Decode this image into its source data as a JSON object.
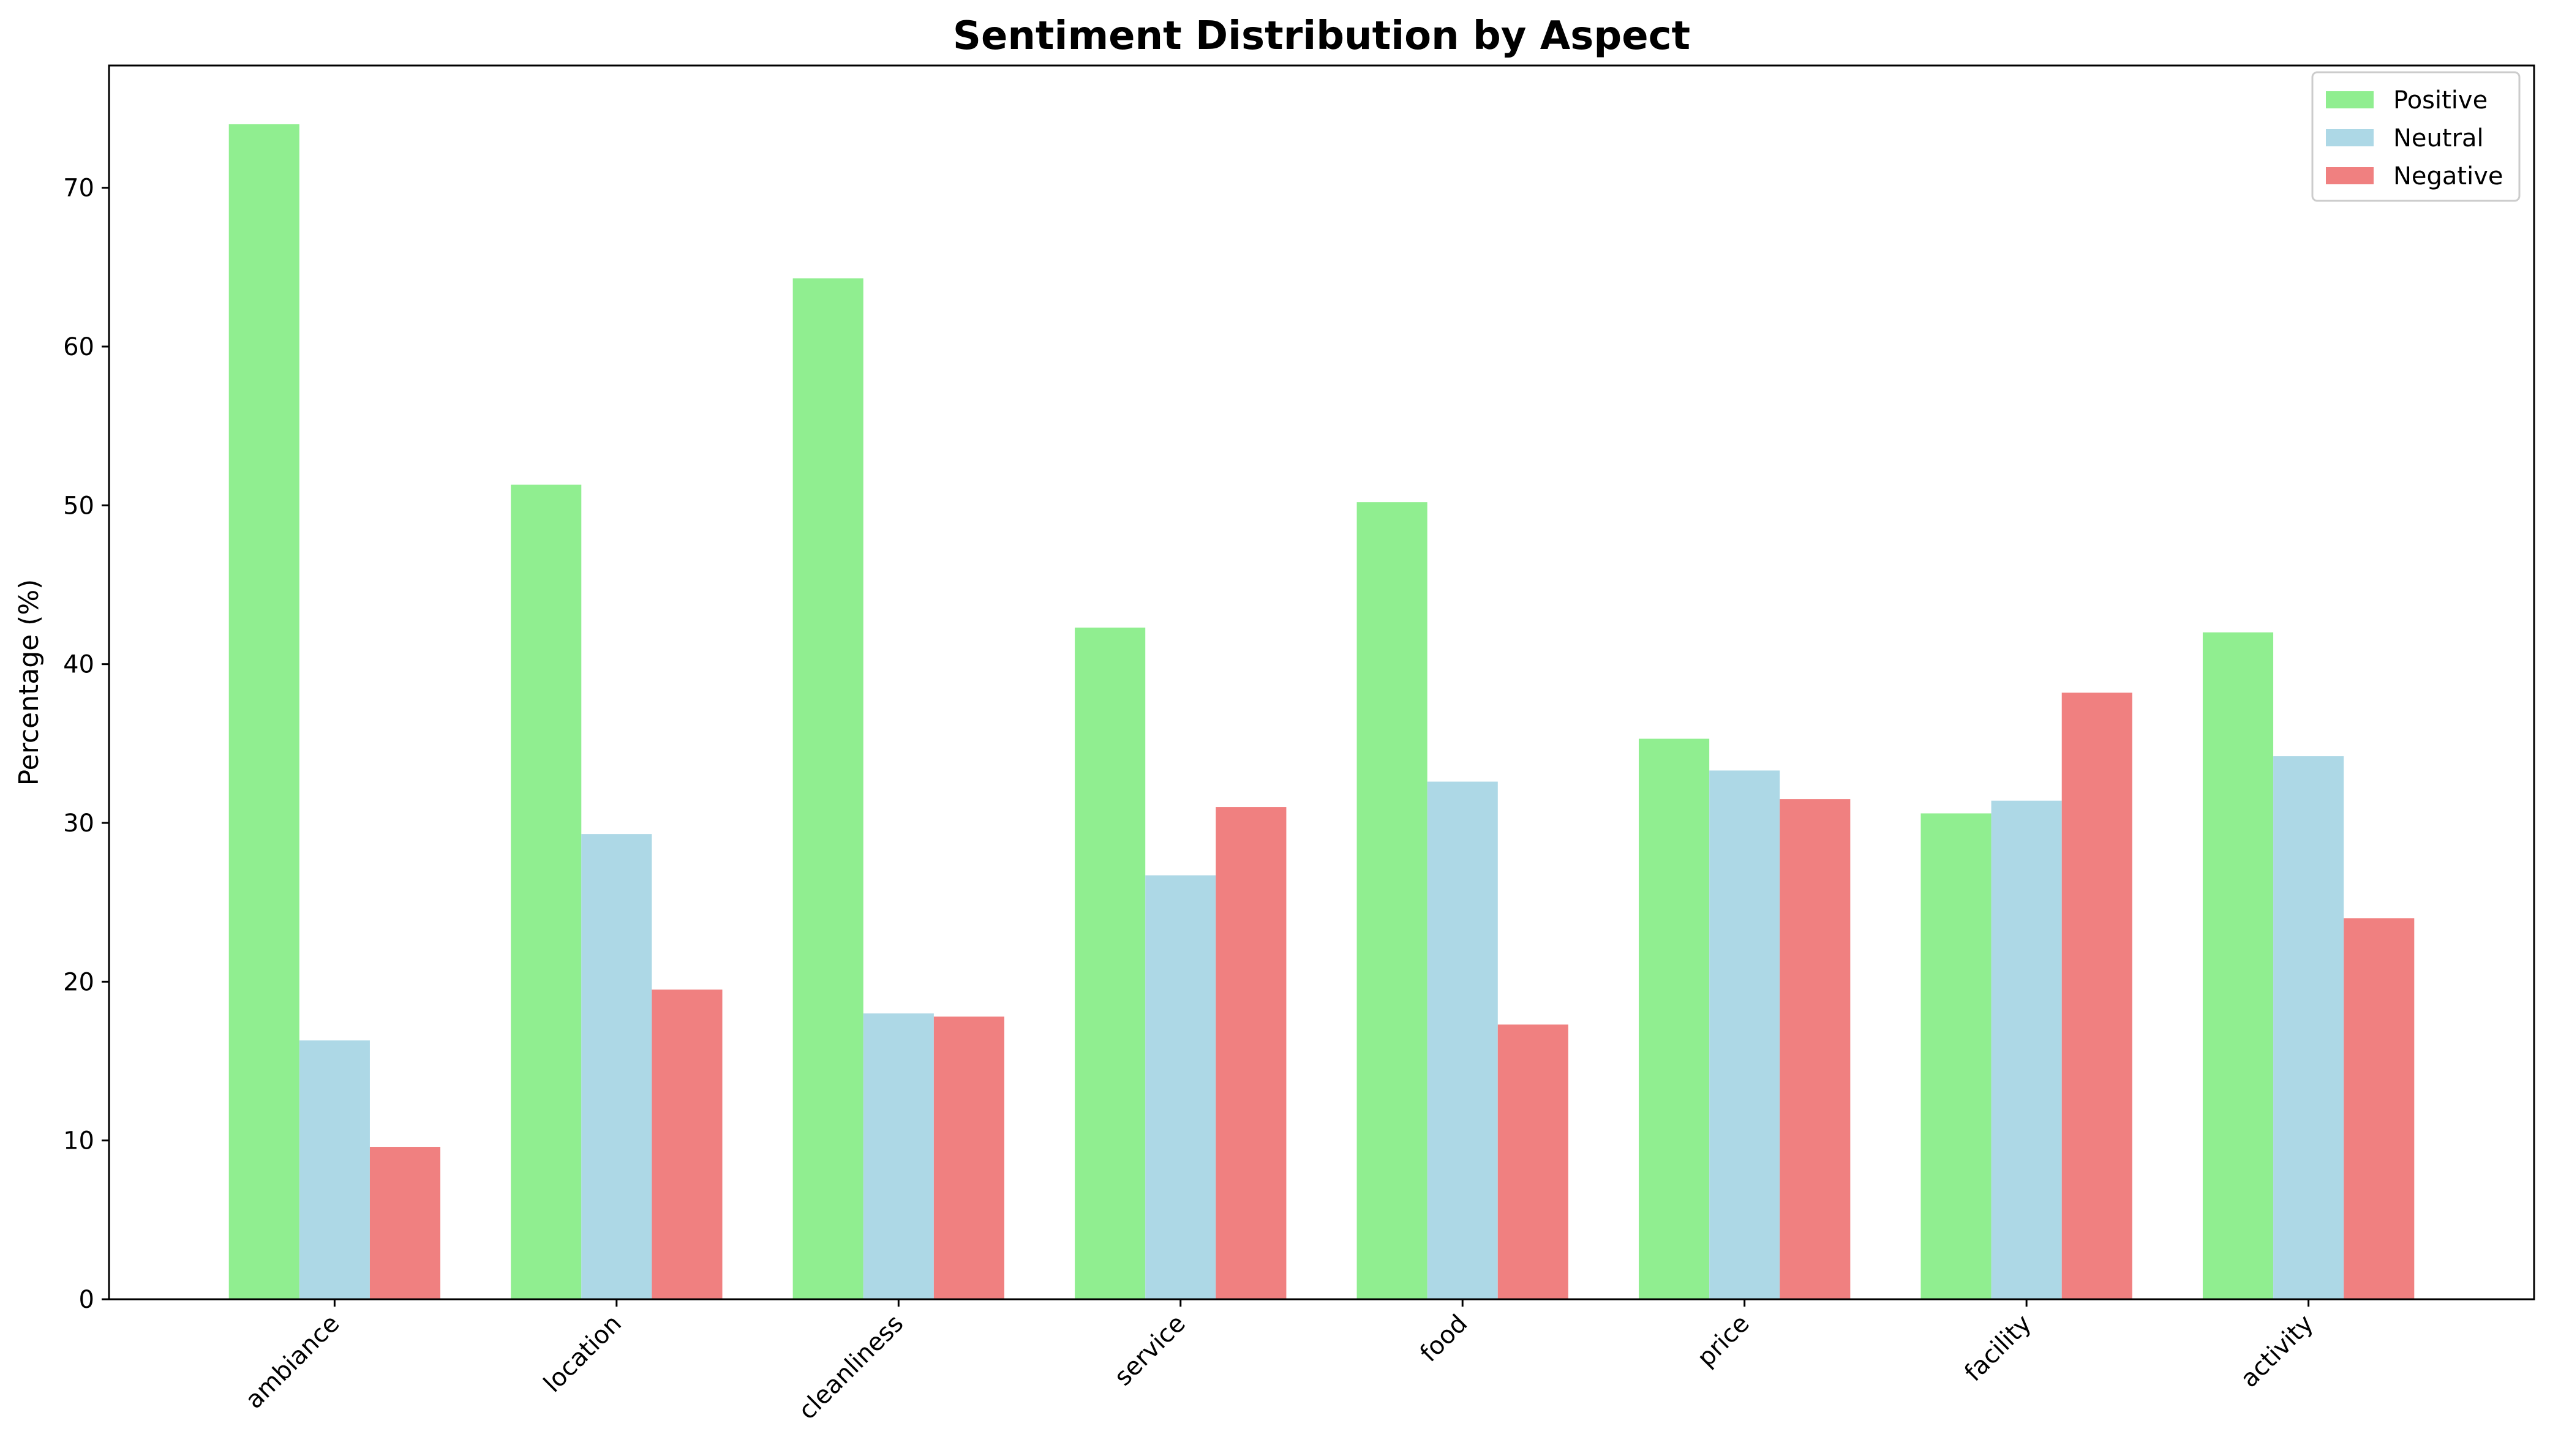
{
  "chart_data": {
    "type": "bar",
    "title": "Sentiment Distribution by Aspect",
    "xlabel": "",
    "ylabel": "Percentage (%)",
    "categories": [
      "ambiance",
      "location",
      "cleanliness",
      "service",
      "food",
      "price",
      "facility",
      "activity"
    ],
    "series": [
      {
        "name": "Positive",
        "color": "#90ee90",
        "values": [
          74.0,
          51.3,
          64.3,
          42.3,
          50.2,
          35.3,
          30.6,
          42.0
        ]
      },
      {
        "name": "Neutral",
        "color": "#add8e6",
        "values": [
          16.3,
          29.3,
          18.0,
          26.7,
          32.6,
          33.3,
          31.4,
          34.2
        ]
      },
      {
        "name": "Negative",
        "color": "#f08080",
        "values": [
          9.6,
          19.5,
          17.8,
          31.0,
          17.3,
          31.5,
          38.2,
          24.0
        ]
      }
    ],
    "yticks": [
      0,
      10,
      20,
      30,
      40,
      50,
      60,
      70
    ],
    "ylim": [
      0,
      77.7
    ],
    "grid": false,
    "legend_position": "top-right"
  }
}
